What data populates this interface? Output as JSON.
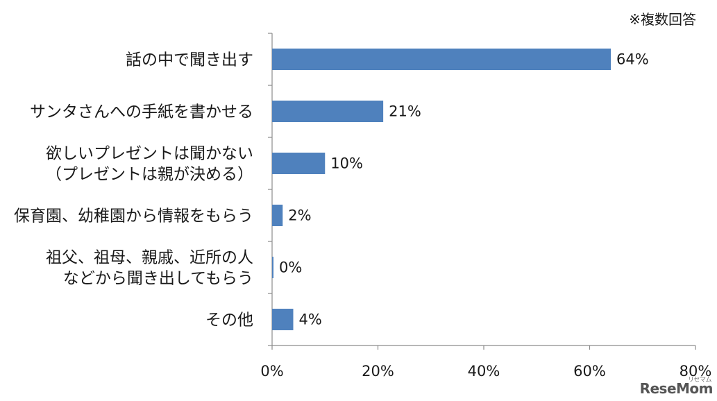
{
  "note": "※複数回答",
  "logo": "ReseMom",
  "logo_sub": "リセマム",
  "colors": {
    "bar": "#4f81bd",
    "axis": "#8c8c8c",
    "text": "#1a1a1a"
  },
  "chart_data": {
    "type": "bar",
    "orientation": "horizontal",
    "categories": [
      [
        "話の中で聞き出す"
      ],
      [
        "サンタさんへの手紙を書かせる"
      ],
      [
        "欲しいプレゼントは聞かない",
        "（プレゼントは親が決める）"
      ],
      [
        "保育園、幼稚園から情報をもらう"
      ],
      [
        "祖父、祖母、親戚、近所の人",
        "などから聞き出してもらう"
      ],
      [
        "その他"
      ]
    ],
    "values": [
      64,
      21,
      10,
      2,
      0,
      4
    ],
    "value_labels": [
      "64%",
      "21%",
      "10%",
      "2%",
      "0%",
      "4%"
    ],
    "xlim": [
      0,
      80
    ],
    "xticks": [
      0,
      20,
      40,
      60,
      80
    ],
    "xtick_labels": [
      "0%",
      "20%",
      "40%",
      "60%",
      "80%"
    ],
    "grid": false
  }
}
